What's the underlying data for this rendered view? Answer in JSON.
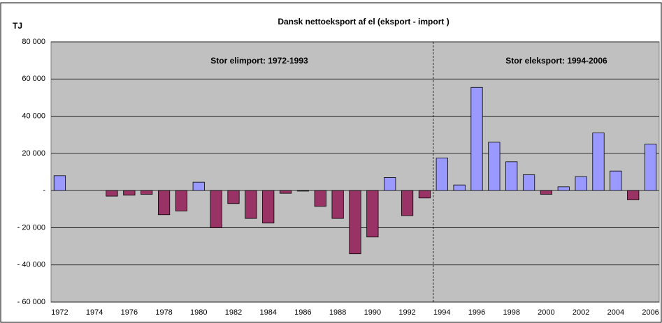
{
  "chart_data": {
    "type": "bar",
    "title": "Dansk nettoeksport af el (eksport -  import )",
    "y_label": "TJ",
    "annotations": [
      "Stor elimport: 1972-1993",
      "Stor eleksport: 1994-2006"
    ],
    "categories": [
      "1972",
      null,
      "1974",
      null,
      "1976",
      null,
      "1978",
      null,
      "1980",
      null,
      "1982",
      null,
      "1984",
      null,
      "1986",
      null,
      "1988",
      null,
      "1990",
      null,
      "1992",
      null,
      "1994",
      null,
      "1996",
      null,
      "1998",
      null,
      "2000",
      null,
      "2002",
      null,
      "2004",
      null,
      "2006"
    ],
    "values": [
      8000,
      0,
      0,
      -3000,
      -2500,
      -2000,
      -13000,
      -11000,
      4500,
      -20000,
      -7000,
      -15000,
      -17500,
      -1500,
      -300,
      -8500,
      -15000,
      -34000,
      -25000,
      7000,
      -13500,
      -4000,
      17500,
      3000,
      55500,
      26000,
      15500,
      8500,
      -2000,
      2000,
      7500,
      31000,
      10500,
      -5000,
      25000
    ],
    "color": "#9999ff",
    "negative_color": "#993366",
    "ylim": [
      -60000,
      80000
    ],
    "yticks": [
      {
        "value": -60000,
        "label": "- 60 000"
      },
      {
        "value": -40000,
        "label": "- 40 000"
      },
      {
        "value": -20000,
        "label": "- 20 000"
      },
      {
        "value": 0,
        "label": "-"
      },
      {
        "value": 20000,
        "label": "20 000"
      },
      {
        "value": 40000,
        "label": "40 000"
      },
      {
        "value": 60000,
        "label": "60 000"
      },
      {
        "value": 80000,
        "label": "80 000"
      }
    ],
    "grid": true
  }
}
